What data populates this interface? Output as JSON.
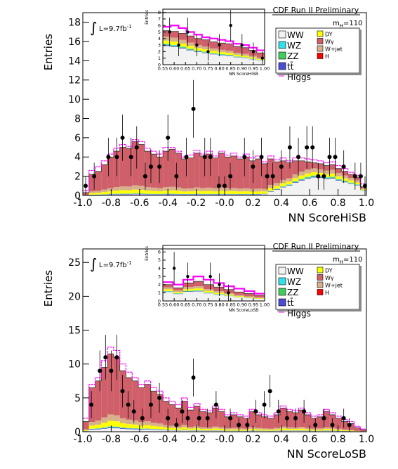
{
  "colors": {
    "WW": "#f2f2f2",
    "WZ": "#33dfe8",
    "ZZ": "#41cc5d",
    "ttbar": "#4b4bd6",
    "DY": "#ffff00",
    "Wgamma": "#cf5f68",
    "Wjet": "#d7b08c",
    "H": "#ff0000",
    "Higgs": "#ff00ff",
    "data": "#000000"
  },
  "chart_data": [
    {
      "type": "bar",
      "style": "stacked-histogram",
      "header": "CDF Run II Preliminary",
      "mass_label": "m",
      "mass_sub": "H",
      "mass_value": "=110",
      "lumi_prefix": "L=9.7fb",
      "lumi_exp": "-1",
      "integral_symbol": "∫",
      "xlabel": "NN ScoreHiSB",
      "ylabel": "Entries",
      "xlim": [
        -1.0,
        1.0
      ],
      "ylim": [
        0,
        19
      ],
      "xticks": [
        "-1.0",
        "-0.8",
        "-0.6",
        "-0.4",
        "-0.2",
        "-0.0",
        "0.2",
        "0.4",
        "0.6",
        "0.8",
        "1.0"
      ],
      "yticks": [
        "0",
        "2",
        "4",
        "6",
        "8",
        "10",
        "12",
        "14",
        "16",
        "18"
      ],
      "legend": [
        {
          "key": "WW",
          "label": "WW"
        },
        {
          "key": "DY",
          "label": "DY"
        },
        {
          "key": "WZ",
          "label": "WZ"
        },
        {
          "key": "Wgamma",
          "label": "Wγ"
        },
        {
          "key": "ZZ",
          "label": "ZZ"
        },
        {
          "key": "Wjet",
          "label": "W+jet"
        },
        {
          "key": "ttbar",
          "label": "tt̄"
        },
        {
          "key": "H",
          "label": "H"
        },
        {
          "key": "Higgs",
          "label": "Higgs"
        }
      ],
      "total_bkg": [
        0.3,
        2.2,
        2.5,
        3.2,
        4.0,
        4.6,
        5.0,
        4.9,
        5.6,
        5.3,
        4.6,
        4.3,
        4.0,
        4.6,
        4.8,
        4.4,
        3.8,
        3.9,
        4.4,
        4.1,
        4.3,
        3.9,
        4.4,
        4.0,
        4.1,
        3.8,
        4.0,
        3.6,
        3.8,
        3.3,
        3.8,
        3.5,
        3.6,
        3.4,
        3.6,
        3.6,
        3.5,
        3.4,
        3.3,
        3.1,
        3.2,
        2.8,
        2.5,
        2.2,
        1.9,
        0.9
      ],
      "signal_line": [
        0.5,
        2.6,
        3.0,
        3.6,
        4.3,
        4.9,
        5.3,
        5.1,
        5.8,
        5.6,
        4.9,
        4.6,
        4.3,
        5.0,
        5.0,
        4.6,
        4.0,
        4.2,
        4.7,
        4.3,
        4.6,
        4.1,
        4.6,
        4.2,
        4.4,
        4.0,
        4.3,
        3.9,
        4.1,
        3.5,
        4.1,
        3.7,
        3.9,
        3.6,
        3.9,
        3.9,
        3.8,
        3.7,
        3.6,
        3.4,
        3.5,
        3.1,
        2.8,
        2.4,
        2.1,
        1.2
      ],
      "data_points": [
        {
          "x": -0.98,
          "y": 1,
          "err": 1.0
        },
        {
          "x": -0.92,
          "y": 2,
          "err": 1.4
        },
        {
          "x": -0.82,
          "y": 4,
          "err": 2.0
        },
        {
          "x": -0.76,
          "y": 4,
          "err": 2.0
        },
        {
          "x": -0.72,
          "y": 6,
          "err": 2.4
        },
        {
          "x": -0.66,
          "y": 4,
          "err": 2.0
        },
        {
          "x": -0.62,
          "y": 5,
          "err": 2.2
        },
        {
          "x": -0.56,
          "y": 2,
          "err": 1.4
        },
        {
          "x": -0.52,
          "y": 3,
          "err": 1.7
        },
        {
          "x": -0.46,
          "y": 3,
          "err": 1.7
        },
        {
          "x": -0.4,
          "y": 6,
          "err": 2.4
        },
        {
          "x": -0.34,
          "y": 2,
          "err": 1.4
        },
        {
          "x": -0.27,
          "y": 4,
          "err": 2.0
        },
        {
          "x": -0.22,
          "y": 9,
          "err": 3.0
        },
        {
          "x": -0.14,
          "y": 4,
          "err": 2.0
        },
        {
          "x": -0.1,
          "y": 4,
          "err": 2.0
        },
        {
          "x": -0.04,
          "y": 1,
          "err": 1.0
        },
        {
          "x": 0.0,
          "y": 1,
          "err": 1.0
        },
        {
          "x": 0.04,
          "y": 2,
          "err": 1.4
        },
        {
          "x": 0.14,
          "y": 4,
          "err": 2.0
        },
        {
          "x": 0.2,
          "y": 3,
          "err": 1.7
        },
        {
          "x": 0.26,
          "y": 4,
          "err": 2.0
        },
        {
          "x": 0.3,
          "y": 2,
          "err": 1.4
        },
        {
          "x": 0.34,
          "y": 2,
          "err": 1.4
        },
        {
          "x": 0.4,
          "y": 3,
          "err": 1.7
        },
        {
          "x": 0.46,
          "y": 5,
          "err": 2.2
        },
        {
          "x": 0.52,
          "y": 4,
          "err": 2.0
        },
        {
          "x": 0.58,
          "y": 5,
          "err": 2.2
        },
        {
          "x": 0.62,
          "y": 5,
          "err": 2.2
        },
        {
          "x": 0.66,
          "y": 2,
          "err": 1.4
        },
        {
          "x": 0.7,
          "y": 2,
          "err": 1.4
        },
        {
          "x": 0.74,
          "y": 4,
          "err": 2.0
        },
        {
          "x": 0.78,
          "y": 4,
          "err": 2.0
        },
        {
          "x": 0.84,
          "y": 3,
          "err": 1.7
        },
        {
          "x": 0.92,
          "y": 2,
          "err": 1.4
        },
        {
          "x": 0.96,
          "y": 2,
          "err": 1.4
        },
        {
          "x": 0.99,
          "y": 1,
          "err": 1.0
        }
      ],
      "inset": {
        "xlabel": "NN ScoreHiSB",
        "ylabel": "Entries",
        "xlim": [
          0.55,
          1.0
        ],
        "ylim": [
          0,
          8.5
        ],
        "xticks": [
          "0.55",
          "0.60",
          "0.65",
          "0.70",
          "0.75",
          "0.80",
          "0.85",
          "0.90",
          "0.95",
          "1.00"
        ],
        "yticks": [
          "0",
          "1",
          "2",
          "3",
          "4",
          "5",
          "6",
          "7",
          "8"
        ],
        "total_bkg": [
          5.2,
          5.1,
          4.8,
          4.4,
          4.0,
          3.8,
          3.5,
          3.3,
          3.2,
          2.8,
          2.6,
          2.2,
          1.8
        ],
        "signal_line": [
          5.8,
          6.0,
          5.6,
          5.0,
          4.6,
          4.2,
          4.0,
          3.8,
          3.6,
          3.2,
          3.0,
          2.6,
          2.2
        ],
        "data_points": [
          {
            "x": 0.58,
            "y": 5,
            "err": 2.2
          },
          {
            "x": 0.62,
            "y": 3,
            "err": 1.7
          },
          {
            "x": 0.66,
            "y": 5,
            "err": 2.2
          },
          {
            "x": 0.7,
            "y": 3,
            "err": 1.7
          },
          {
            "x": 0.75,
            "y": 2,
            "err": 1.4
          },
          {
            "x": 0.8,
            "y": 3,
            "err": 1.7
          },
          {
            "x": 0.85,
            "y": 6,
            "err": 2.4
          },
          {
            "x": 0.9,
            "y": 3,
            "err": 1.7
          },
          {
            "x": 0.95,
            "y": 2,
            "err": 1.4
          },
          {
            "x": 0.99,
            "y": 1,
            "err": 1.0
          }
        ]
      }
    },
    {
      "type": "bar",
      "style": "stacked-histogram",
      "header": "CDF Run II Preliminary",
      "mass_label": "m",
      "mass_sub": "H",
      "mass_value": "=110",
      "lumi_prefix": "L=9.7fb",
      "lumi_exp": "-1",
      "integral_symbol": "∫",
      "xlabel": "NN ScoreLoSB",
      "ylabel": "Entries",
      "xlim": [
        -1.0,
        1.0
      ],
      "ylim": [
        0,
        27
      ],
      "xticks": [
        "-1.0",
        "-0.8",
        "-0.6",
        "-0.4",
        "-0.2",
        "-0.0",
        "0.2",
        "0.4",
        "0.6",
        "0.8",
        "1.0"
      ],
      "yticks": [
        "0",
        "5",
        "10",
        "15",
        "20",
        "25"
      ],
      "legend": [
        {
          "key": "WW",
          "label": "WW"
        },
        {
          "key": "DY",
          "label": "DY"
        },
        {
          "key": "WZ",
          "label": "WZ"
        },
        {
          "key": "Wgamma",
          "label": "Wγ"
        },
        {
          "key": "ZZ",
          "label": "ZZ"
        },
        {
          "key": "Wjet",
          "label": "W+jet"
        },
        {
          "key": "ttbar",
          "label": "tt̄"
        },
        {
          "key": "H",
          "label": "H"
        },
        {
          "key": "Higgs",
          "label": "Higgs"
        }
      ],
      "total_bkg": [
        1.5,
        6.5,
        7.5,
        9.5,
        11.5,
        11.0,
        9.0,
        8.0,
        7.5,
        6.5,
        7.0,
        6.0,
        5.5,
        4.5,
        4.0,
        3.5,
        4.5,
        3.2,
        3.8,
        3.0,
        2.8,
        3.5,
        3.0,
        2.2,
        2.5,
        2.2,
        2.0,
        3.0,
        2.5,
        2.2,
        2.0,
        2.5,
        3.5,
        3.0,
        2.8,
        3.2,
        2.5,
        2.0,
        2.2,
        3.0,
        2.5,
        2.0,
        1.5,
        1.2,
        0.6,
        0.3
      ],
      "signal_line": [
        2.0,
        7.0,
        8.0,
        10.5,
        12.5,
        12.0,
        10.0,
        8.8,
        8.0,
        7.0,
        7.5,
        6.5,
        6.0,
        5.0,
        4.5,
        4.0,
        5.0,
        3.6,
        4.2,
        3.3,
        3.1,
        3.8,
        3.3,
        2.5,
        2.8,
        2.5,
        2.3,
        3.3,
        2.8,
        2.5,
        2.3,
        2.8,
        3.8,
        3.3,
        3.1,
        3.5,
        2.8,
        2.3,
        2.5,
        3.3,
        2.8,
        2.3,
        1.8,
        1.5,
        0.8,
        0.4
      ],
      "data_points": [
        {
          "x": -0.94,
          "y": 4,
          "err": 2.0
        },
        {
          "x": -0.88,
          "y": 9,
          "err": 3.0
        },
        {
          "x": -0.84,
          "y": 11,
          "err": 3.3
        },
        {
          "x": -0.8,
          "y": 9,
          "err": 3.0
        },
        {
          "x": -0.76,
          "y": 11,
          "err": 3.3
        },
        {
          "x": -0.72,
          "y": 6,
          "err": 2.4
        },
        {
          "x": -0.68,
          "y": 4,
          "err": 2.0
        },
        {
          "x": -0.64,
          "y": 3,
          "err": 1.7
        },
        {
          "x": -0.58,
          "y": 2,
          "err": 1.4
        },
        {
          "x": -0.52,
          "y": 4,
          "err": 2.0
        },
        {
          "x": -0.46,
          "y": 5,
          "err": 2.2
        },
        {
          "x": -0.4,
          "y": 2,
          "err": 1.4
        },
        {
          "x": -0.34,
          "y": 1,
          "err": 1.0
        },
        {
          "x": -0.3,
          "y": 3,
          "err": 1.7
        },
        {
          "x": -0.26,
          "y": 2,
          "err": 1.4
        },
        {
          "x": -0.22,
          "y": 8,
          "err": 2.8
        },
        {
          "x": -0.18,
          "y": 2,
          "err": 1.4
        },
        {
          "x": -0.12,
          "y": 2,
          "err": 1.4
        },
        {
          "x": -0.06,
          "y": 4,
          "err": 2.0
        },
        {
          "x": 0.04,
          "y": 2,
          "err": 1.4
        },
        {
          "x": 0.1,
          "y": 1,
          "err": 1.0
        },
        {
          "x": 0.16,
          "y": 1,
          "err": 1.0
        },
        {
          "x": 0.22,
          "y": 3,
          "err": 1.7
        },
        {
          "x": 0.28,
          "y": 4,
          "err": 2.0
        },
        {
          "x": 0.32,
          "y": 6,
          "err": 2.4
        },
        {
          "x": 0.38,
          "y": 3,
          "err": 1.7
        },
        {
          "x": 0.44,
          "y": 2,
          "err": 1.4
        },
        {
          "x": 0.5,
          "y": 2,
          "err": 1.4
        },
        {
          "x": 0.56,
          "y": 3,
          "err": 1.7
        },
        {
          "x": 0.64,
          "y": 1,
          "err": 1.0
        },
        {
          "x": 0.7,
          "y": 2,
          "err": 1.4
        },
        {
          "x": 0.76,
          "y": 1,
          "err": 1.0
        },
        {
          "x": 0.84,
          "y": 2,
          "err": 1.4
        },
        {
          "x": 0.88,
          "y": 1,
          "err": 1.0
        }
      ],
      "inset": {
        "xlabel": "NN ScoreLoSB",
        "ylabel": "Entries",
        "xlim": [
          0.55,
          1.0
        ],
        "ylim": [
          0,
          6.8
        ],
        "xticks": [
          "0.55",
          "0.60",
          "0.65",
          "0.70",
          "0.75",
          "0.80",
          "0.85",
          "0.90",
          "0.95",
          "1.00"
        ],
        "yticks": [
          "0",
          "1",
          "2",
          "3",
          "4",
          "5",
          "6"
        ],
        "total_bkg": [
          2.0,
          1.6,
          2.2,
          2.4,
          2.0,
          1.7,
          1.4,
          1.1,
          0.9,
          0.7
        ],
        "signal_line": [
          2.3,
          2.0,
          2.6,
          3.0,
          2.6,
          2.2,
          1.8,
          1.5,
          1.2,
          0.9
        ],
        "data_points": [
          {
            "x": 0.6,
            "y": 4,
            "err": 2.0
          },
          {
            "x": 0.66,
            "y": 3,
            "err": 1.7
          },
          {
            "x": 0.76,
            "y": 3,
            "err": 1.7
          },
          {
            "x": 0.8,
            "y": 2,
            "err": 1.4
          },
          {
            "x": 0.84,
            "y": 1,
            "err": 1.0
          }
        ]
      }
    }
  ]
}
